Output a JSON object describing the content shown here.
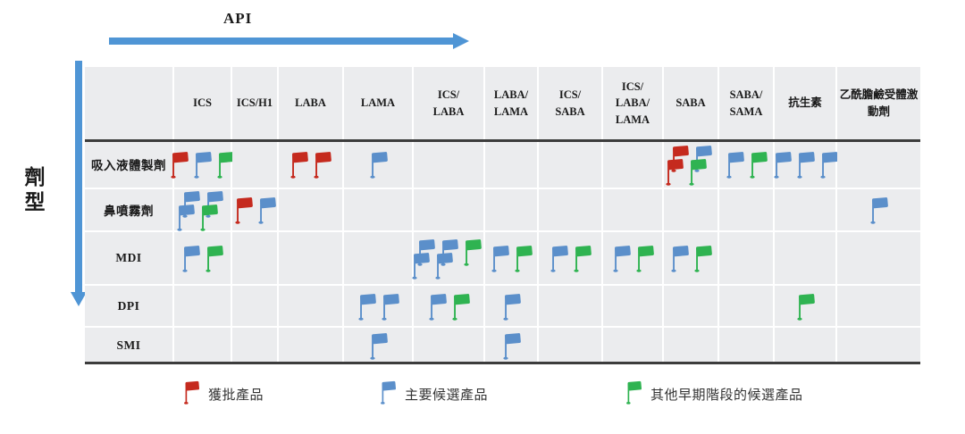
{
  "axis": {
    "x_title": "API",
    "y_title": "劑型"
  },
  "colors": {
    "approved": "#c52a1e",
    "lead": "#5b8fca",
    "early": "#2fb351",
    "arrow": "#4f95d5",
    "cell_bg": "#ebecee",
    "divider": "#3c3c3c"
  },
  "column_headers": [
    "ICS",
    "ICS/H1",
    "LABA",
    "LAMA",
    "ICS/\nLABA",
    "LABA/\nLAMA",
    "ICS/\nSABA",
    "ICS/\nLABA/\nLAMA",
    "SABA",
    "SABA/\nSAMA",
    "抗生素",
    "乙酰膽鹼受體激動劑"
  ],
  "legend": [
    {
      "stage": "approved",
      "label": "獲批產品"
    },
    {
      "stage": "lead",
      "label": "主要候選產品"
    },
    {
      "stage": "early",
      "label": "其他早期階段的候選產品"
    }
  ],
  "chart_data": {
    "type": "heatmap",
    "title": "",
    "xlabel": "API",
    "ylabel": "劑型",
    "legend_position": "bottom",
    "stage_meaning": {
      "approved": "獲批產品",
      "lead": "主要候選產品",
      "early": "其他早期階段的候選產品"
    },
    "columns": [
      "ICS",
      "ICS/H1",
      "LABA",
      "LAMA",
      "ICS/LABA",
      "LABA/LAMA",
      "ICS/SABA",
      "ICS/LABA/LAMA",
      "SABA",
      "SABA/SAMA",
      "抗生素",
      "乙酰膽鹼受體激動劑"
    ],
    "rows": [
      "吸入液體製劑",
      "鼻噴霧劑",
      "MDI",
      "DPI",
      "SMI"
    ],
    "cells": [
      {
        "row": "吸入液體製劑",
        "col": "ICS",
        "flag_rows": [
          [
            "approved",
            "lead",
            "early"
          ]
        ]
      },
      {
        "row": "吸入液體製劑",
        "col": "LABA",
        "flag_rows": [
          [
            "approved",
            "approved"
          ]
        ]
      },
      {
        "row": "吸入液體製劑",
        "col": "LAMA",
        "flag_rows": [
          [
            "lead"
          ]
        ]
      },
      {
        "row": "吸入液體製劑",
        "col": "SABA",
        "flag_rows": [
          [
            "approved",
            "lead"
          ],
          [
            "approved",
            "early"
          ]
        ]
      },
      {
        "row": "吸入液體製劑",
        "col": "SABA/SAMA",
        "flag_rows": [
          [
            "lead",
            "early"
          ]
        ]
      },
      {
        "row": "吸入液體製劑",
        "col": "抗生素",
        "flag_rows": [
          [
            "lead",
            "lead",
            "lead"
          ]
        ]
      },
      {
        "row": "鼻噴霧劑",
        "col": "ICS",
        "flag_rows": [
          [
            "lead",
            "lead"
          ],
          [
            "lead",
            "early"
          ]
        ]
      },
      {
        "row": "鼻噴霧劑",
        "col": "ICS/H1",
        "flag_rows": [
          [
            "approved",
            "lead"
          ]
        ]
      },
      {
        "row": "鼻噴霧劑",
        "col": "乙酰膽鹼受體激動劑",
        "flag_rows": [
          [
            "lead"
          ]
        ]
      },
      {
        "row": "MDI",
        "col": "ICS",
        "flag_rows": [
          [
            "lead",
            "early"
          ]
        ]
      },
      {
        "row": "MDI",
        "col": "ICS/LABA",
        "flag_rows": [
          [
            "lead",
            "lead",
            "early"
          ],
          [
            "lead",
            "lead"
          ]
        ]
      },
      {
        "row": "MDI",
        "col": "LABA/LAMA",
        "flag_rows": [
          [
            "lead",
            "early"
          ]
        ]
      },
      {
        "row": "MDI",
        "col": "ICS/SABA",
        "flag_rows": [
          [
            "lead",
            "early"
          ]
        ]
      },
      {
        "row": "MDI",
        "col": "ICS/LABA/LAMA",
        "flag_rows": [
          [
            "lead",
            "early"
          ]
        ]
      },
      {
        "row": "MDI",
        "col": "SABA",
        "flag_rows": [
          [
            "lead",
            "early"
          ]
        ]
      },
      {
        "row": "DPI",
        "col": "LAMA",
        "flag_rows": [
          [
            "lead",
            "lead"
          ]
        ]
      },
      {
        "row": "DPI",
        "col": "ICS/LABA",
        "flag_rows": [
          [
            "lead",
            "early"
          ]
        ]
      },
      {
        "row": "DPI",
        "col": "LABA/LAMA",
        "flag_rows": [
          [
            "lead"
          ]
        ]
      },
      {
        "row": "DPI",
        "col": "抗生素",
        "flag_rows": [
          [
            "early"
          ]
        ]
      },
      {
        "row": "SMI",
        "col": "LAMA",
        "flag_rows": [
          [
            "lead"
          ]
        ]
      },
      {
        "row": "SMI",
        "col": "LABA/LAMA",
        "flag_rows": [
          [
            "lead"
          ]
        ]
      }
    ]
  }
}
